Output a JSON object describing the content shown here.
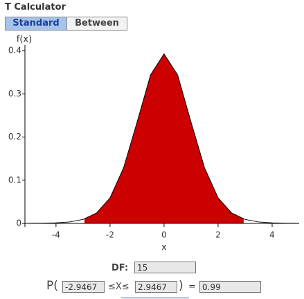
{
  "header": {
    "title": "T Calculator"
  },
  "tabs": [
    "Standard",
    "Between"
  ],
  "chart_data": {
    "type": "line",
    "ylabel": "f(x)",
    "xlabel": "x",
    "x": [
      -5,
      -4.5,
      -4,
      -3.5,
      -3,
      -2.5,
      -2,
      -1.5,
      -1,
      -0.5,
      0,
      0.5,
      1,
      1.5,
      2,
      2.5,
      3,
      3.5,
      4,
      4.5,
      5
    ],
    "values": [
      0.00015,
      0.00042,
      0.00118,
      0.00331,
      0.00913,
      0.0242,
      0.0592,
      0.1283,
      0.2341,
      0.3438,
      0.3924,
      0.3438,
      0.2341,
      0.1283,
      0.0592,
      0.0242,
      0.00913,
      0.00331,
      0.00118,
      0.00042,
      0.00015
    ],
    "color": "#cc0000",
    "xlim": [
      -5.15,
      5
    ],
    "ylim": [
      0,
      0.4
    ],
    "xticks": [
      -4,
      -2,
      0,
      2,
      4
    ],
    "yticks": [
      0,
      0.1,
      0.2,
      0.3,
      0.4
    ]
  },
  "form": {
    "df_label": "DF:",
    "df": 15,
    "prob_prefix": "P(",
    "lower": -2.9467,
    "between": "≤X≤",
    "upper": 2.9467,
    "close": ")",
    "equals": "=",
    "result": 0.99
  }
}
